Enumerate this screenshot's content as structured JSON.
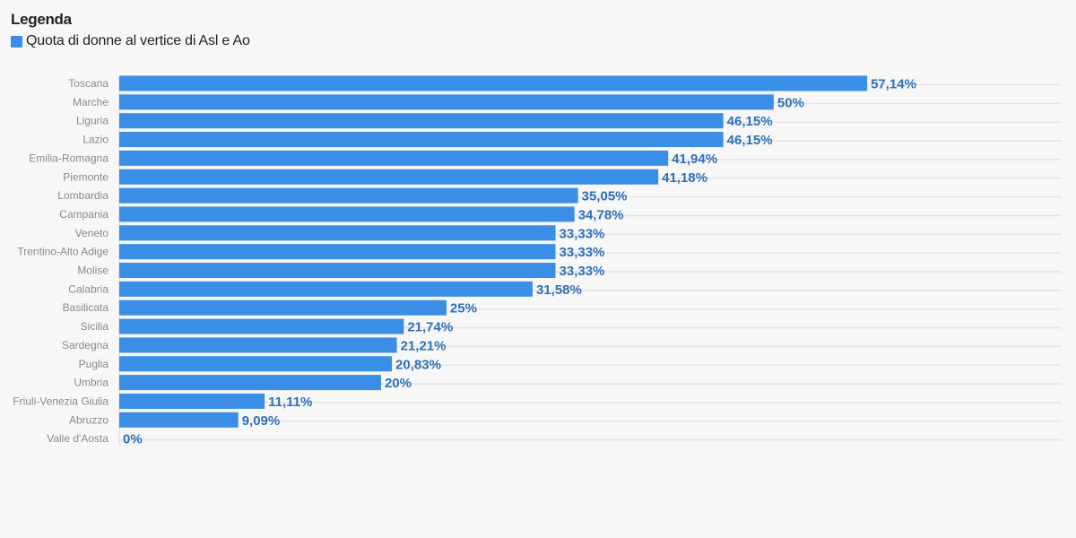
{
  "legend": {
    "title": "Legenda",
    "entries": [
      {
        "label": "Quota di donne al vertice di Asl e Ao",
        "color": "#3a8ee6"
      }
    ]
  },
  "chart_data": {
    "type": "bar",
    "orientation": "horizontal",
    "grid": true,
    "legend_position": "top-left",
    "bar_color": "#3a8ee6",
    "value_label_color": "#2f6fba",
    "xlim": [
      0,
      72
    ],
    "categories": [
      "Toscana",
      "Marche",
      "Liguria",
      "Lazio",
      "Emilia-Romagna",
      "Piemonte",
      "Lombardia",
      "Campania",
      "Veneto",
      "Trentino-Alto Adige",
      "Molise",
      "Calabria",
      "Basilicata",
      "Sicilia",
      "Sardegna",
      "Puglia",
      "Umbria",
      "Friuli-Venezia Giulia",
      "Abruzzo",
      "Valle d'Aosta"
    ],
    "series": [
      {
        "name": "Quota di donne al vertice di Asl e Ao",
        "values": [
          57.14,
          50,
          46.15,
          46.15,
          41.94,
          41.18,
          35.05,
          34.78,
          33.33,
          33.33,
          33.33,
          31.58,
          25,
          21.74,
          21.21,
          20.83,
          20,
          11.11,
          9.09,
          0
        ],
        "labels": [
          "57,14%",
          "50%",
          "46,15%",
          "46,15%",
          "41,94%",
          "41,18%",
          "35,05%",
          "34,78%",
          "33,33%",
          "33,33%",
          "33,33%",
          "31,58%",
          "25%",
          "21,74%",
          "21,21%",
          "20,83%",
          "20%",
          "11,11%",
          "9,09%",
          "0%"
        ]
      }
    ]
  }
}
